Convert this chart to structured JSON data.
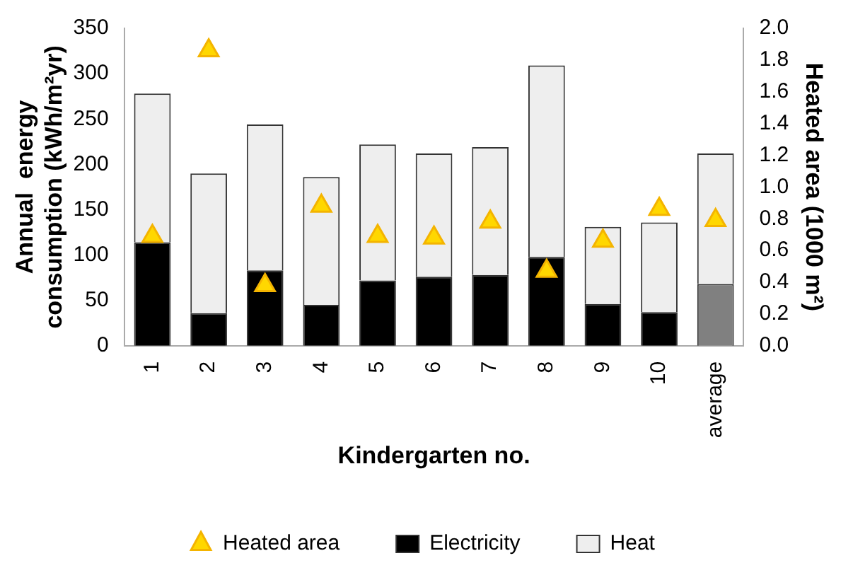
{
  "chart_data": {
    "type": "bar",
    "stacked": true,
    "xlabel": "Kindergarten no.",
    "ylabel": "Annual  energy\nconsumption (kWh/m²yr)",
    "y2label": "Heated area (1000 m²)",
    "categories": [
      "1",
      "2",
      "3",
      "4",
      "5",
      "6",
      "7",
      "8",
      "9",
      "10",
      "average"
    ],
    "series": [
      {
        "name": "Electricity",
        "color": "#000000",
        "colors": [
          "#000000",
          "#000000",
          "#000000",
          "#000000",
          "#000000",
          "#000000",
          "#000000",
          "#000000",
          "#000000",
          "#000000",
          "#808080"
        ],
        "values": [
          114,
          36,
          83,
          45,
          72,
          76,
          78,
          98,
          46,
          37,
          68
        ]
      },
      {
        "name": "Heat",
        "color": "#eeeeee",
        "values": [
          164,
          154,
          161,
          141,
          150,
          136,
          141,
          211,
          85,
          99,
          144
        ]
      },
      {
        "name": "Heated area",
        "type": "scatter",
        "axis": "y2",
        "color": "#ffd700",
        "marker": "triangle",
        "x": [
          "1",
          "2",
          "3",
          "4",
          "5",
          "6",
          "7",
          "8",
          "9",
          "10",
          "average"
        ],
        "values": [
          0.69,
          1.86,
          0.38,
          0.88,
          0.69,
          0.68,
          0.78,
          0.47,
          0.66,
          0.86,
          0.79
        ]
      }
    ],
    "ylim": [
      0,
      350
    ],
    "yticks": [
      0,
      50,
      100,
      150,
      200,
      250,
      300,
      350
    ],
    "y2lim": [
      0,
      2.0
    ],
    "y2ticks": [
      {
        "value": 0,
        "label": "0.0"
      },
      {
        "value": 0.2,
        "label": "0.2"
      },
      {
        "value": 0.4,
        "label": "0.4"
      },
      {
        "value": 0.6,
        "label": "0.6"
      },
      {
        "value": 0.8,
        "label": "0.8"
      },
      {
        "value": 1.0,
        "label": "1.0"
      },
      {
        "value": 1.2,
        "label": "1.2"
      },
      {
        "value": 1.4,
        "label": "1.4"
      },
      {
        "value": 1.6,
        "label": "1.6"
      },
      {
        "value": 1.8,
        "label": "1.8"
      },
      {
        "value": 2.0,
        "label": "2.0"
      }
    ],
    "grid": false,
    "legend": "bottom"
  }
}
